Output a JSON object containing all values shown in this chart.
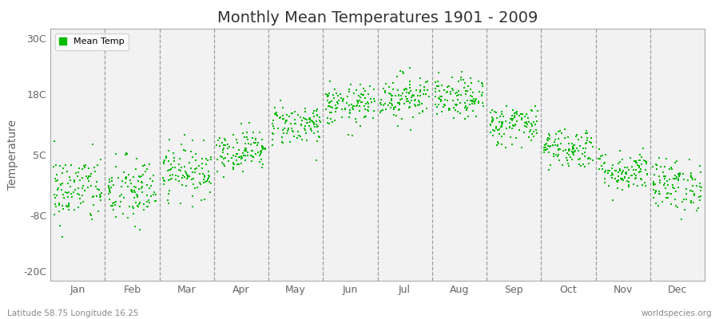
{
  "title": "Monthly Mean Temperatures 1901 - 2009",
  "ylabel": "Temperature",
  "subtitle": "Latitude 58.75 Longitude 16.25",
  "watermark": "worldspecies.org",
  "yticks": [
    -20,
    -8,
    5,
    18,
    30
  ],
  "ytick_labels": [
    "-20C",
    "-8C",
    "5C",
    "18C",
    "30C"
  ],
  "ylim": [
    -22,
    32
  ],
  "months": [
    "Jan",
    "Feb",
    "Mar",
    "Apr",
    "May",
    "Jun",
    "Jul",
    "Aug",
    "Sep",
    "Oct",
    "Nov",
    "Dec"
  ],
  "month_means": [
    -2.5,
    -3.0,
    1.5,
    6.0,
    11.5,
    15.5,
    17.5,
    17.0,
    11.5,
    6.5,
    1.5,
    -1.5
  ],
  "month_stds": [
    3.8,
    3.8,
    2.8,
    2.2,
    2.2,
    2.2,
    2.5,
    2.2,
    2.2,
    2.2,
    2.2,
    2.8
  ],
  "dot_color": "#00bb00",
  "bg_color": "#ffffff",
  "plot_bg_color": "#f2f2f2",
  "legend_label": "Mean Temp",
  "n_years": 109,
  "seed": 42,
  "dot_size": 4,
  "title_fontsize": 14,
  "axis_fontsize": 9,
  "ylabel_fontsize": 10
}
